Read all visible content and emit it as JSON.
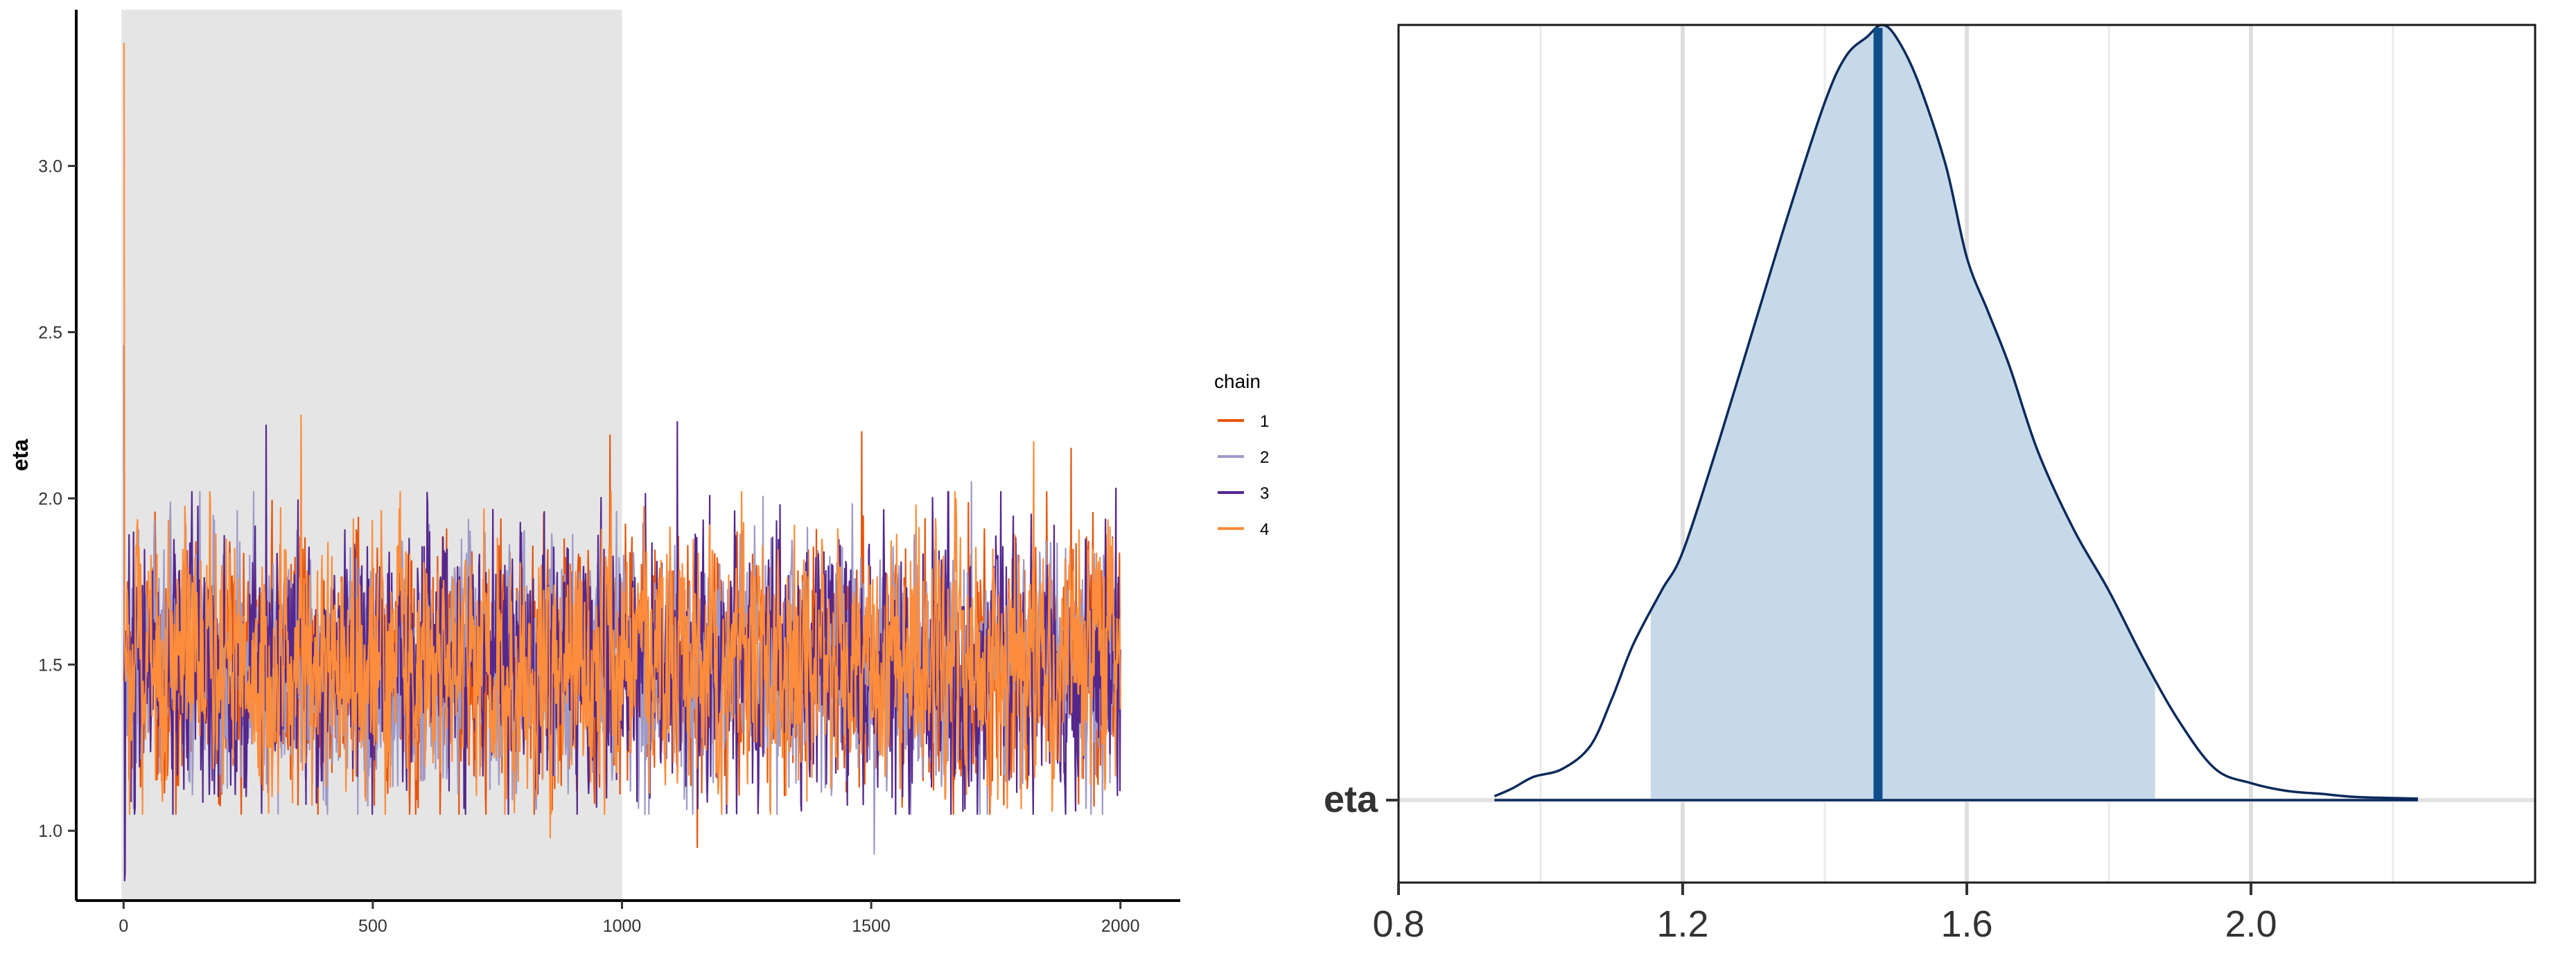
{
  "chart_data": [
    {
      "type": "line",
      "title": "",
      "xlabel": "",
      "ylabel": "eta",
      "xlim": [
        -95,
        2120
      ],
      "ylim": [
        0.79,
        3.47
      ],
      "x_ticks": [
        {
          "value": 0,
          "label": "0"
        },
        {
          "value": 500,
          "label": "500"
        },
        {
          "value": 1000,
          "label": "1000"
        },
        {
          "value": 1500,
          "label": "1500"
        },
        {
          "value": 2000,
          "label": "2000"
        }
      ],
      "y_ticks": [
        {
          "value": 1.0,
          "label": "1.0"
        },
        {
          "value": 1.5,
          "label": "1.5"
        },
        {
          "value": 2.0,
          "label": "2.0"
        },
        {
          "value": 2.5,
          "label": "2.5"
        },
        {
          "value": 3.0,
          "label": "3.0"
        }
      ],
      "warmup_region": [
        0,
        1000
      ],
      "grid": false,
      "legend": {
        "title": "chain",
        "placement": "right"
      },
      "series": [
        {
          "name": "1",
          "color": "#e6550d",
          "start_values": [
            1.45,
            1.55,
            1.5,
            1.6,
            1.4,
            1.5
          ],
          "center": 1.5,
          "spread": 0.17,
          "spikes": [
            {
              "x": 975,
              "y": 2.19
            },
            {
              "x": 1150,
              "y": 0.95
            },
            {
              "x": 1480,
              "y": 2.2
            },
            {
              "x": 1900,
              "y": 2.15
            }
          ]
        },
        {
          "name": "2",
          "color": "#9e9ac8",
          "start_values": [
            1.5,
            1.6,
            1.45,
            1.55,
            1.5,
            1.4
          ],
          "center": 1.5,
          "spread": 0.17,
          "spikes": [
            {
              "x": 1505,
              "y": 0.93
            },
            {
              "x": 1700,
              "y": 2.05
            }
          ]
        },
        {
          "name": "3",
          "color": "#54278f",
          "start_values": [
            2.46,
            0.85,
            0.87,
            1.6,
            1.5,
            1.55
          ],
          "center": 1.5,
          "spread": 0.18,
          "spikes": [
            {
              "x": 285,
              "y": 2.22
            },
            {
              "x": 1110,
              "y": 2.23
            },
            {
              "x": 1990,
              "y": 2.03
            }
          ]
        },
        {
          "name": "4",
          "color": "#fd8d3c",
          "start_values": [
            3.37,
            1.6,
            1.5,
            1.45,
            1.55,
            1.5
          ],
          "center": 1.5,
          "spread": 0.17,
          "spikes": [
            {
              "x": 355,
              "y": 2.25
            },
            {
              "x": 855,
              "y": 0.98
            },
            {
              "x": 1825,
              "y": 2.17
            }
          ]
        }
      ],
      "iterations": 2000
    },
    {
      "type": "area",
      "title": "",
      "xlabel": "",
      "ylabel": "",
      "xlim": [
        0.8,
        2.4
      ],
      "x_ticks": [
        {
          "value": 0.8,
          "label": "0.8"
        },
        {
          "value": 1.2,
          "label": "1.2"
        },
        {
          "value": 1.6,
          "label": "1.6"
        },
        {
          "value": 2.0,
          "label": "2.0"
        }
      ],
      "y_ticks": [
        {
          "label": "eta"
        }
      ],
      "parameter": "eta",
      "median": 1.475,
      "interval": [
        1.155,
        1.865
      ],
      "density": [
        [
          0.935,
          0.005
        ],
        [
          0.96,
          0.015
        ],
        [
          0.99,
          0.03
        ],
        [
          1.03,
          0.04
        ],
        [
          1.07,
          0.07
        ],
        [
          1.1,
          0.13
        ],
        [
          1.13,
          0.2
        ],
        [
          1.17,
          0.27
        ],
        [
          1.2,
          0.32
        ],
        [
          1.25,
          0.46
        ],
        [
          1.3,
          0.61
        ],
        [
          1.35,
          0.76
        ],
        [
          1.4,
          0.9
        ],
        [
          1.43,
          0.96
        ],
        [
          1.46,
          0.985
        ],
        [
          1.48,
          1.0
        ],
        [
          1.5,
          0.985
        ],
        [
          1.53,
          0.93
        ],
        [
          1.57,
          0.82
        ],
        [
          1.6,
          0.7
        ],
        [
          1.63,
          0.63
        ],
        [
          1.66,
          0.56
        ],
        [
          1.7,
          0.45
        ],
        [
          1.75,
          0.35
        ],
        [
          1.8,
          0.27
        ],
        [
          1.85,
          0.18
        ],
        [
          1.9,
          0.1
        ],
        [
          1.95,
          0.04
        ],
        [
          2.0,
          0.022
        ],
        [
          2.05,
          0.012
        ],
        [
          2.1,
          0.008
        ],
        [
          2.15,
          0.004
        ],
        [
          2.235,
          0.002
        ]
      ],
      "fill_color": "#c6d9e8",
      "line_color": "#0b2a5c",
      "median_color": "#104e8b"
    }
  ]
}
